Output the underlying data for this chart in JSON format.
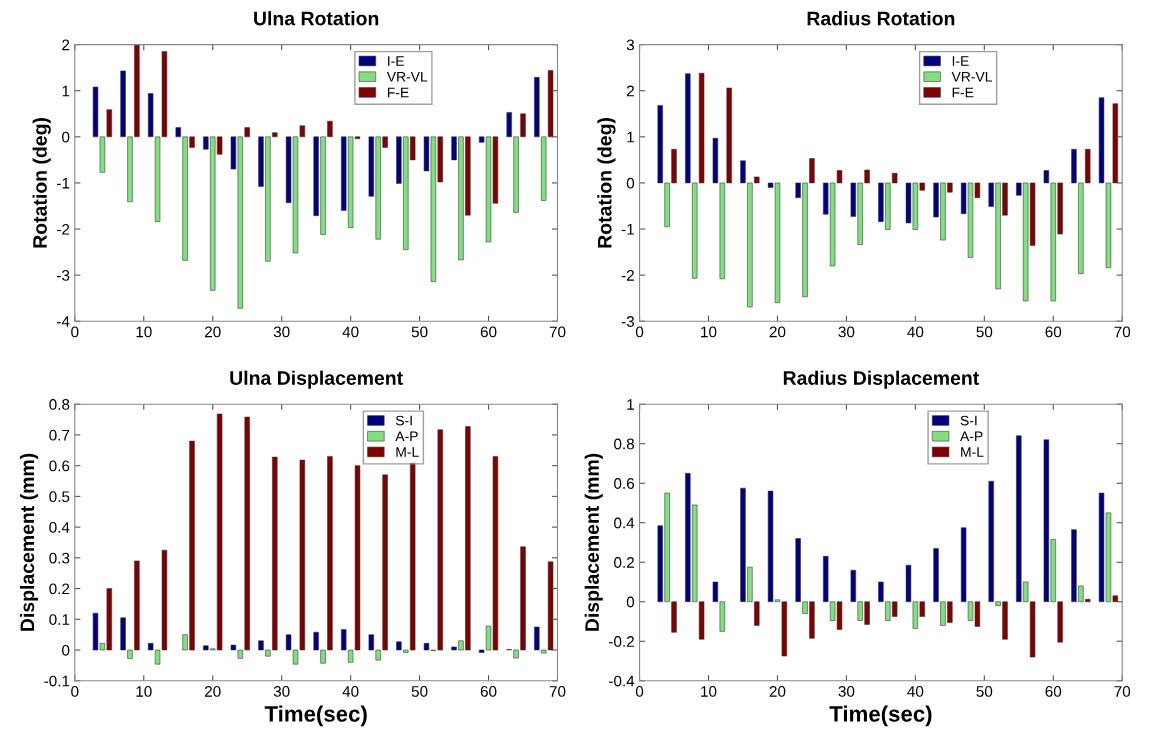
{
  "chart_data": [
    {
      "type": "bar",
      "title": "Ulna Rotation",
      "ylabel": "Rotation (deg)",
      "xlim": [
        0,
        70
      ],
      "xticks": [
        0,
        10,
        20,
        30,
        40,
        50,
        60,
        70
      ],
      "ylim": [
        -4,
        2
      ],
      "yticks": [
        -4,
        -3,
        -2,
        -1,
        0,
        1,
        2
      ],
      "grid": false,
      "legend": "top",
      "series": [
        {
          "name": "I-E",
          "color": "#000080",
          "x": [
            3,
            7,
            11,
            15,
            19,
            23,
            27,
            31,
            35,
            39,
            43,
            47,
            51,
            55,
            59,
            63,
            67
          ],
          "values": [
            1.08,
            1.43,
            0.94,
            0.2,
            -0.27,
            -0.7,
            -1.08,
            -1.43,
            -1.71,
            -1.6,
            -1.29,
            -1.01,
            -0.74,
            -0.5,
            -0.12,
            0.53,
            1.29
          ]
        },
        {
          "name": "VR-VL",
          "color": "#80e080",
          "x": [
            4,
            8,
            12,
            16,
            20,
            24,
            28,
            32,
            36,
            40,
            44,
            48,
            52,
            56,
            60,
            64,
            68
          ],
          "values": [
            -0.77,
            -1.41,
            -1.84,
            -2.68,
            -3.33,
            -3.72,
            -2.7,
            -2.52,
            -2.12,
            -1.97,
            -2.22,
            -2.45,
            -3.14,
            -2.67,
            -2.28,
            -1.64,
            -1.38
          ]
        },
        {
          "name": "F-E",
          "color": "#800000",
          "x": [
            5,
            9,
            13,
            17,
            21,
            25,
            29,
            33,
            37,
            41,
            45,
            49,
            53,
            57,
            61,
            65,
            69
          ],
          "values": [
            0.59,
            2.0,
            1.85,
            -0.23,
            -0.38,
            0.2,
            0.09,
            0.24,
            0.34,
            -0.04,
            -0.23,
            -0.5,
            -0.98,
            -1.7,
            -1.44,
            0.5,
            1.44
          ]
        }
      ]
    },
    {
      "type": "bar",
      "title": "Radius Rotation",
      "ylabel": "Rotation (deg)",
      "xlim": [
        0,
        70
      ],
      "xticks": [
        0,
        10,
        20,
        30,
        40,
        50,
        60,
        70
      ],
      "ylim": [
        -3,
        3
      ],
      "yticks": [
        -3,
        -2,
        -1,
        0,
        1,
        2,
        3
      ],
      "grid": false,
      "legend": "top",
      "series": [
        {
          "name": "I-E",
          "color": "#000080",
          "x": [
            3,
            7,
            11,
            15,
            19,
            23,
            27,
            31,
            35,
            39,
            43,
            47,
            51,
            55,
            59,
            63,
            67
          ],
          "values": [
            1.68,
            2.37,
            0.97,
            0.48,
            -0.1,
            -0.32,
            -0.68,
            -0.73,
            -0.84,
            -0.87,
            -0.74,
            -0.67,
            -0.51,
            -0.27,
            0.27,
            0.73,
            1.85
          ]
        },
        {
          "name": "VR-VL",
          "color": "#80e080",
          "x": [
            4,
            8,
            12,
            16,
            20,
            24,
            28,
            32,
            36,
            40,
            44,
            48,
            52,
            56,
            60,
            64,
            68
          ],
          "values": [
            -0.95,
            -2.07,
            -2.08,
            -2.69,
            -2.6,
            -2.47,
            -1.8,
            -1.34,
            -1.01,
            -1.01,
            -1.24,
            -1.62,
            -2.3,
            -2.56,
            -2.56,
            -1.97,
            -1.84
          ]
        },
        {
          "name": "F-E",
          "color": "#800000",
          "x": [
            5,
            9,
            13,
            17,
            21,
            25,
            29,
            33,
            37,
            41,
            45,
            49,
            53,
            57,
            61,
            65,
            69
          ],
          "values": [
            0.73,
            2.38,
            2.06,
            0.13,
            null,
            0.53,
            0.27,
            0.28,
            0.21,
            -0.16,
            -0.2,
            -0.32,
            -0.7,
            -1.36,
            -1.11,
            0.73,
            1.72
          ]
        }
      ]
    },
    {
      "type": "bar",
      "title": "Ulna Displacement",
      "xlabel": "Time(sec)",
      "ylabel": "Displacement (mm)",
      "xlim": [
        0,
        70
      ],
      "xticks": [
        0,
        10,
        20,
        30,
        40,
        50,
        60,
        70
      ],
      "ylim": [
        -0.1,
        0.8
      ],
      "yticks": [
        -0.1,
        0,
        0.1,
        0.2,
        0.3,
        0.4,
        0.5,
        0.6,
        0.7,
        0.8
      ],
      "grid": false,
      "legend": "top",
      "series": [
        {
          "name": "S-I",
          "color": "#000080",
          "x": [
            3,
            7,
            11,
            15,
            19,
            23,
            27,
            31,
            35,
            39,
            43,
            47,
            51,
            55,
            59,
            63,
            67
          ],
          "values": [
            0.12,
            0.105,
            0.022,
            null,
            0.014,
            0.016,
            0.03,
            0.05,
            0.058,
            0.067,
            0.05,
            0.027,
            0.022,
            0.01,
            -0.008,
            0.002,
            0.075
          ]
        },
        {
          "name": "A-P",
          "color": "#80e080",
          "x": [
            4,
            8,
            12,
            16,
            20,
            24,
            28,
            32,
            36,
            40,
            44,
            48,
            52,
            56,
            60,
            64,
            68
          ],
          "values": [
            0.022,
            -0.028,
            -0.046,
            0.05,
            0.004,
            -0.027,
            -0.02,
            -0.046,
            -0.043,
            -0.04,
            -0.033,
            -0.008,
            -0.002,
            0.03,
            0.078,
            -0.026,
            -0.01
          ]
        },
        {
          "name": "M-L",
          "color": "#800000",
          "x": [
            5,
            9,
            13,
            17,
            21,
            25,
            29,
            33,
            37,
            41,
            45,
            49,
            53,
            57,
            61,
            65,
            69
          ],
          "values": [
            0.2,
            0.29,
            0.325,
            0.68,
            0.768,
            0.758,
            0.628,
            0.618,
            0.63,
            0.6,
            0.57,
            0.61,
            0.717,
            0.727,
            0.63,
            0.336,
            0.287
          ]
        }
      ]
    },
    {
      "type": "bar",
      "title": "Radius Displacement",
      "xlabel": "Time(sec)",
      "ylabel": "Displacement (mm)",
      "xlim": [
        0,
        70
      ],
      "xticks": [
        0,
        10,
        20,
        30,
        40,
        50,
        60,
        70
      ],
      "ylim": [
        -0.4,
        1
      ],
      "yticks": [
        -0.4,
        -0.2,
        0,
        0.2,
        0.4,
        0.6,
        0.8,
        1
      ],
      "grid": false,
      "legend": "top",
      "series": [
        {
          "name": "S-I",
          "color": "#000080",
          "x": [
            3,
            7,
            11,
            15,
            19,
            23,
            27,
            31,
            35,
            39,
            43,
            47,
            51,
            55,
            59,
            63,
            67
          ],
          "values": [
            0.385,
            0.65,
            0.1,
            0.575,
            0.56,
            0.32,
            0.23,
            0.16,
            0.1,
            0.185,
            0.27,
            0.375,
            0.61,
            0.84,
            0.82,
            0.365,
            0.55
          ]
        },
        {
          "name": "A-P",
          "color": "#80e080",
          "x": [
            4,
            8,
            12,
            16,
            20,
            24,
            28,
            32,
            36,
            40,
            44,
            48,
            52,
            56,
            60,
            64,
            68
          ],
          "values": [
            0.55,
            0.49,
            -0.15,
            0.175,
            0.01,
            -0.06,
            -0.095,
            -0.095,
            -0.095,
            -0.135,
            -0.12,
            -0.095,
            -0.02,
            0.1,
            0.315,
            0.08,
            0.45
          ]
        },
        {
          "name": "M-L",
          "color": "#800000",
          "x": [
            5,
            9,
            13,
            17,
            21,
            25,
            29,
            33,
            37,
            41,
            45,
            49,
            53,
            57,
            61,
            65,
            69
          ],
          "values": [
            -0.155,
            -0.19,
            null,
            -0.12,
            -0.275,
            -0.185,
            -0.14,
            -0.115,
            -0.075,
            -0.075,
            -0.105,
            -0.125,
            -0.19,
            -0.28,
            -0.205,
            0.012,
            0.03
          ]
        }
      ]
    }
  ]
}
